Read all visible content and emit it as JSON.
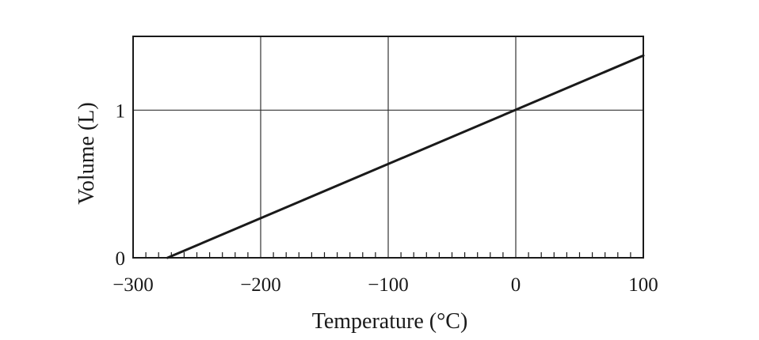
{
  "chart_data": {
    "type": "line",
    "title": "",
    "xlabel": "Temperature (°C)",
    "ylabel": "Volume (L)",
    "xlim": [
      -300,
      100
    ],
    "ylim": [
      0,
      1.5
    ],
    "grid": true,
    "x_major_ticks": [
      -300,
      -200,
      -100,
      0,
      100
    ],
    "x_tick_labels": [
      "−300",
      "−200",
      "−100",
      "0",
      "100"
    ],
    "x_minor_tick_step": 10,
    "y_major_ticks": [
      0,
      1
    ],
    "y_tick_labels": [
      "0",
      "1"
    ],
    "series": [
      {
        "x": [
          -273,
          100
        ],
        "y": [
          0,
          1.37
        ]
      }
    ]
  }
}
